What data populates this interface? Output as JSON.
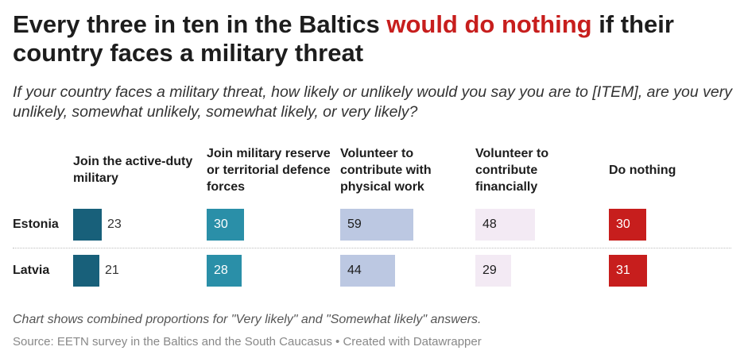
{
  "title": {
    "part1": "Every three in ten in the Baltics ",
    "highlight": "would do nothing",
    "part2": " if their country faces a military threat"
  },
  "subtitle": "If your country faces a military threat, how likely or unlikely would you say you are to [ITEM], are you very unlikely, somewhat unlikely, somewhat likely, or very likely?",
  "note": "Chart shows combined proportions for \"Very likely\" and \"Somewhat likely\" answers.",
  "source": "Source: EETN survey in the Baltics and the South Caucasus • Created with Datawrapper",
  "chart_data": {
    "type": "table",
    "title": "Every three in ten in the Baltics would do nothing if their country faces a military threat",
    "columns": [
      {
        "name": "Join the active-duty military",
        "color": "#18607a",
        "label_inside": false
      },
      {
        "name": "Join military reserve or territorial defence forces",
        "color": "#2a8fa8",
        "label_inside": true
      },
      {
        "name": "Volunteer to contribute with physical work",
        "color": "#bcc8e2",
        "label_inside": true
      },
      {
        "name": "Volunteer to contribute financially",
        "color": "#f3eaf4",
        "label_inside": true
      },
      {
        "name": "Do nothing",
        "color": "#c71e1d",
        "label_inside": true
      }
    ],
    "rows": [
      {
        "name": "Estonia",
        "values": [
          23,
          30,
          59,
          48,
          30
        ]
      },
      {
        "name": "Latvia",
        "values": [
          21,
          28,
          44,
          29,
          31
        ]
      }
    ],
    "scale_max": 100
  }
}
